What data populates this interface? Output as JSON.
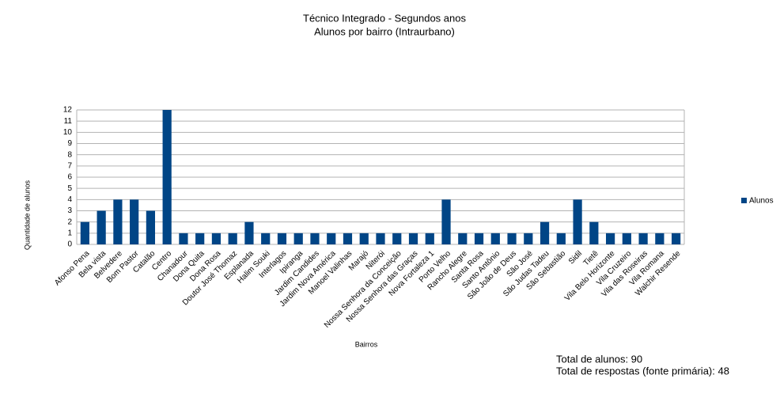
{
  "chart_data": {
    "type": "bar",
    "title": "Técnico Integrado - Segundos anos",
    "subtitle": "Alunos por bairro (Intraurbano)",
    "x_label": "Bairros",
    "y_label": "Quantidade de alunos",
    "categories": [
      "Afonso Pena",
      "Bela vista",
      "Belvedere",
      "Bom Pastor",
      "Catalão",
      "Centro",
      "Chanadour",
      "Dona Quita",
      "Dona Rosa",
      "Doutor José Thomaz",
      "Esplanada",
      "Halim Souki",
      "Interlagos",
      "Ipiranga",
      "Jardim Candides",
      "Jardim Nova América",
      "Manoel Valinhas",
      "Marajó",
      "Niterói",
      "Nossa Senhora da Conceição",
      "Nossa Senhora das Graças",
      "Nova Fortaleza 1",
      "Porto Velho",
      "Rancho Alegre",
      "Santa Rosa",
      "Santo Antônio",
      "São João de Deus",
      "São José",
      "São Judas Tadeu",
      "São Sebastião",
      "Sidil",
      "Tietê",
      "Vila Belo Horizonte",
      "Vila Cruzeiro",
      "Vila das Roseiras",
      "Vila Romana",
      "Walchir Resende"
    ],
    "series": [
      {
        "name": "Alunos",
        "color": "#004586",
        "values": [
          2,
          3,
          4,
          4,
          3,
          12,
          1,
          1,
          1,
          1,
          2,
          1,
          1,
          1,
          1,
          1,
          1,
          1,
          1,
          1,
          1,
          1,
          4,
          1,
          1,
          1,
          1,
          1,
          2,
          1,
          4,
          2,
          1,
          1,
          1,
          1,
          1
        ]
      }
    ],
    "ylim": [
      0,
      12
    ],
    "yticks": [
      0,
      1,
      2,
      3,
      4,
      5,
      6,
      7,
      8,
      9,
      10,
      11,
      12
    ],
    "grid": true,
    "legend": "right",
    "annotations": [
      "Total de alunos: 90",
      "Total de respostas (fonte primária): 48"
    ]
  }
}
